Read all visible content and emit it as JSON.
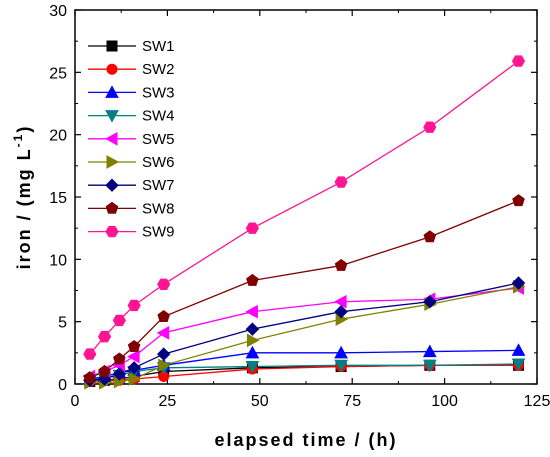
{
  "chart_data": {
    "type": "line",
    "title": "",
    "xlabel": "elapsed time / (h)",
    "ylabel": "iron / (mg L",
    "ylabel_superscript": "-1",
    "ylabel_suffix": ")",
    "xlim": [
      0,
      125
    ],
    "ylim": [
      0,
      30
    ],
    "xticks": [
      0,
      25,
      50,
      75,
      100,
      125
    ],
    "yticks": [
      0,
      5,
      10,
      15,
      20,
      25,
      30
    ],
    "grid": false,
    "legend_position": "top-left",
    "x": [
      4,
      8,
      12,
      16,
      24,
      48,
      72,
      96,
      120
    ],
    "series": [
      {
        "name": "SW1",
        "color": "#000000",
        "marker": "square",
        "x": [
          4,
          8,
          12,
          16,
          24,
          48,
          72,
          96,
          120
        ],
        "values": [
          0.2,
          0.3,
          0.4,
          0.6,
          1.0,
          1.3,
          1.4,
          1.5,
          1.5
        ]
      },
      {
        "name": "SW2",
        "color": "#ff0000",
        "marker": "circle",
        "x": [
          4,
          8,
          12,
          16,
          24,
          48,
          72,
          96,
          120
        ],
        "values": [
          0.2,
          0.3,
          0.3,
          0.4,
          0.6,
          1.2,
          1.4,
          1.5,
          1.5
        ]
      },
      {
        "name": "SW3",
        "color": "#0000ff",
        "marker": "triangle-up",
        "x": [
          4,
          8,
          12,
          16,
          24,
          48,
          72,
          96,
          120
        ],
        "values": [
          0.4,
          0.6,
          0.9,
          1.1,
          1.5,
          2.5,
          2.5,
          2.6,
          2.7
        ]
      },
      {
        "name": "SW4",
        "color": "#008080",
        "marker": "triangle-down",
        "x": [
          4,
          8,
          12,
          16,
          24,
          48,
          72,
          96,
          120
        ],
        "values": [
          0.3,
          0.5,
          0.7,
          1.0,
          1.3,
          1.4,
          1.5,
          1.5,
          1.6
        ]
      },
      {
        "name": "SW5",
        "color": "#ff00ff",
        "marker": "triangle-left",
        "x": [
          4,
          8,
          12,
          16,
          24,
          48,
          72,
          96,
          120
        ],
        "values": [
          0.6,
          1.0,
          1.5,
          2.2,
          4.1,
          5.8,
          6.6,
          6.8,
          7.7
        ]
      },
      {
        "name": "SW6",
        "color": "#808000",
        "marker": "triangle-right",
        "x": [
          4,
          8,
          12,
          16,
          24,
          48,
          72,
          96,
          120
        ],
        "values": [
          0.1,
          0.1,
          0.2,
          0.4,
          1.5,
          3.5,
          5.2,
          6.4,
          7.8
        ]
      },
      {
        "name": "SW7",
        "color": "#000080",
        "marker": "diamond",
        "x": [
          4,
          8,
          12,
          16,
          24,
          48,
          72,
          96,
          120
        ],
        "values": [
          0.3,
          0.4,
          0.8,
          1.3,
          2.4,
          4.4,
          5.8,
          6.6,
          8.1
        ]
      },
      {
        "name": "SW8",
        "color": "#800000",
        "marker": "pentagon",
        "x": [
          4,
          8,
          12,
          16,
          24,
          48,
          72,
          96,
          120
        ],
        "values": [
          0.5,
          1.0,
          2.0,
          3.0,
          5.4,
          8.3,
          9.5,
          11.8,
          14.7
        ]
      },
      {
        "name": "SW9",
        "color": "#ff1493",
        "marker": "hexagon",
        "x": [
          4,
          8,
          12,
          16,
          24,
          48,
          72,
          96,
          120
        ],
        "values": [
          2.4,
          3.8,
          5.1,
          6.3,
          8.0,
          12.5,
          16.2,
          20.6,
          25.9
        ]
      }
    ]
  }
}
